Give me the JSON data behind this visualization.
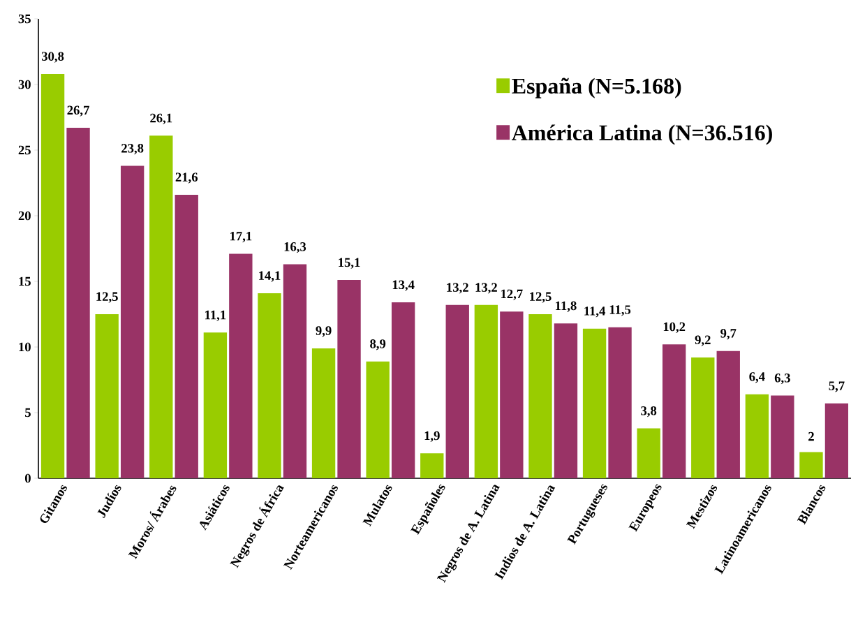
{
  "chart_data": {
    "type": "bar",
    "categories": [
      "Gitanos",
      "Judíos",
      "Moros/ Árabes",
      "Asiáticos",
      "Negros de África",
      "Norteamericanos",
      "Mulatos",
      "Españoles",
      "Negros de A. Latina",
      "Indios de A. Latina",
      "Portugueses",
      "Europeos",
      "Mestizos",
      "Latinoamericanos",
      "Blancos"
    ],
    "series": [
      {
        "name": "España (N=5.168)",
        "color": "#99cc00",
        "values": [
          30.8,
          12.5,
          26.1,
          11.1,
          14.1,
          9.9,
          8.9,
          1.9,
          13.2,
          12.5,
          11.4,
          3.8,
          9.2,
          6.4,
          2
        ],
        "value_labels": [
          "30,8",
          "12,5",
          "26,1",
          "11,1",
          "14,1",
          "9,9",
          "8,9",
          "1,9",
          "13,2",
          "12,5",
          "11,4",
          "3,8",
          "9,2",
          "6,4",
          "2"
        ]
      },
      {
        "name": "América Latina (N=36.516)",
        "color": "#993366",
        "values": [
          26.7,
          23.8,
          21.6,
          17.1,
          16.3,
          15.1,
          13.4,
          13.2,
          12.7,
          11.8,
          11.5,
          10.2,
          9.7,
          6.3,
          5.7
        ],
        "value_labels": [
          "26,7",
          "23,8",
          "21,6",
          "17,1",
          "16,3",
          "15,1",
          "13,4",
          "13,2",
          "12,7",
          "11,8",
          "11,5",
          "10,2",
          "9,7",
          "6,3",
          "5,7"
        ]
      }
    ],
    "ylim": [
      0,
      35
    ],
    "yticks": [
      0,
      5,
      10,
      15,
      20,
      25,
      30,
      35
    ],
    "legend": "top right"
  }
}
